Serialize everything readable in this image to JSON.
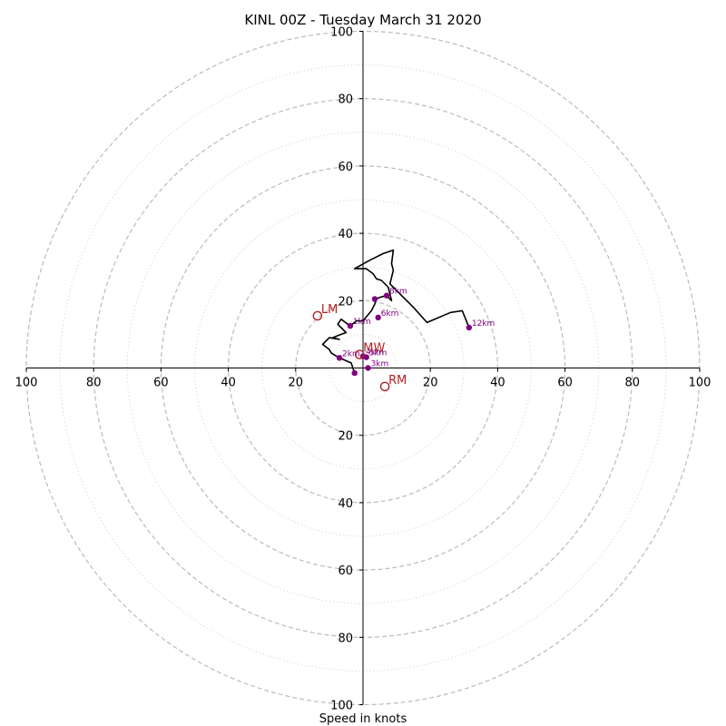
{
  "chart_data": {
    "type": "hodograph",
    "title": "KINL 00Z - Tuesday March 31 2020",
    "xlabel": "Speed in knots",
    "ylabel": "",
    "range": 100,
    "ring_major": [
      20,
      40,
      60,
      80,
      100
    ],
    "ring_minor": [
      10,
      30,
      50,
      70,
      90
    ],
    "tick_labels": [
      "20",
      "40",
      "60",
      "80",
      "100"
    ],
    "colors": {
      "trace": "#000000",
      "height_marker": "#800080",
      "motion": "#b22222",
      "ring": "#bbbbbb"
    },
    "trace": [
      [
        -2.5,
        -1.5
      ],
      [
        -3.5,
        1.5
      ],
      [
        -7.0,
        3.0
      ],
      [
        -9.5,
        4.5
      ],
      [
        -10.0,
        5.5
      ],
      [
        -12.0,
        7.0
      ],
      [
        -10.0,
        9.0
      ],
      [
        -7.0,
        8.5
      ],
      [
        -9.0,
        9.0
      ],
      [
        -6.5,
        10.0
      ],
      [
        -5.0,
        10.5
      ],
      [
        -7.5,
        13.0
      ],
      [
        -6.5,
        14.5
      ],
      [
        -4.5,
        13.0
      ],
      [
        -3.8,
        12.5
      ],
      [
        -2.0,
        14.0
      ],
      [
        0.0,
        14.0
      ],
      [
        2.5,
        17.0
      ],
      [
        3.5,
        19.0
      ],
      [
        4.0,
        20.5
      ],
      [
        5.0,
        21.0
      ],
      [
        7.0,
        21.5
      ],
      [
        8.5,
        20.0
      ],
      [
        7.5,
        24.0
      ],
      [
        5.5,
        26.0
      ],
      [
        4.0,
        26.5
      ],
      [
        3.0,
        28.0
      ],
      [
        1.0,
        29.5
      ],
      [
        -2.5,
        29.5
      ],
      [
        2.0,
        32.0
      ],
      [
        6.0,
        34.0
      ],
      [
        9.0,
        35.0
      ],
      [
        8.5,
        31.0
      ],
      [
        9.0,
        29.0
      ],
      [
        8.0,
        25.0
      ],
      [
        11.0,
        22.0
      ],
      [
        15.0,
        18.0
      ],
      [
        19.0,
        13.5
      ],
      [
        26.0,
        16.5
      ],
      [
        29.5,
        17.0
      ],
      [
        31.5,
        12.0
      ]
    ],
    "height_points": [
      {
        "label": "",
        "u": -2.5,
        "v": -1.5
      },
      {
        "label": "1km",
        "u": -3.8,
        "v": 12.5
      },
      {
        "label": "2km",
        "u": -7.0,
        "v": 3.0
      },
      {
        "label": "3km",
        "u": 1.5,
        "v": 0.0
      },
      {
        "label": "4km",
        "u": 0.0,
        "v": 3.5
      },
      {
        "label": "5km",
        "u": 1.0,
        "v": 3.2
      },
      {
        "label": "6km",
        "u": 4.5,
        "v": 15.0
      },
      {
        "label": "",
        "u": 3.5,
        "v": 20.5
      },
      {
        "label": "8km",
        "u": 7.0,
        "v": 21.5
      },
      {
        "label": "12km",
        "u": 31.5,
        "v": 12.0
      }
    ],
    "storm_motion": [
      {
        "label": "LM",
        "u": -13.5,
        "v": 15.5
      },
      {
        "label": "MW",
        "u": -1.0,
        "v": 4.0
      },
      {
        "label": "RM",
        "u": 6.5,
        "v": -5.5
      }
    ]
  }
}
